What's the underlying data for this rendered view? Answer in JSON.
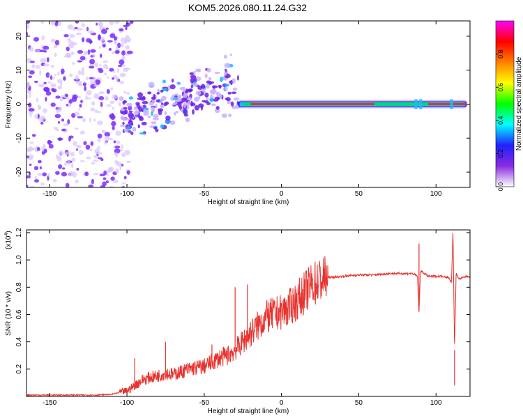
{
  "title": "KOM5.2026.080.11.24.G32",
  "colors": {
    "signal": "#e8322e",
    "axis": "#000000",
    "scatter": "#7a2cff",
    "scatter_light": "#d8c4ff",
    "band_core": "#ff2a2a",
    "band_edge": "#1fb8ff"
  },
  "chart_data": [
    {
      "type": "heatmap",
      "title": "KOM5.2026.080.11.24.G32",
      "xlabel": "Height of straight line (km)",
      "ylabel": "Frequency (Hz)",
      "xlim": [
        -165,
        122
      ],
      "ylim": [
        -24.5,
        24.5
      ],
      "xticks": [
        -150,
        -100,
        -50,
        0,
        50,
        100
      ],
      "xticklabels": [
        "-150",
        "-100",
        "-50",
        "0",
        "50",
        "100"
      ],
      "yticks": [
        -20,
        -10,
        0,
        10,
        20
      ],
      "yticklabels": [
        "-20",
        "-10",
        "0",
        "10",
        "20"
      ],
      "colorbar": {
        "label": "Normalized spectral amplitude",
        "range": [
          0,
          1
        ],
        "ticks": [
          0.0,
          0.2,
          0.4,
          0.6,
          0.8
        ],
        "ticklabels": [
          "0.0",
          "0.2",
          "0.4",
          "0.6",
          "0.8"
        ],
        "colormap": [
          "#ffffff",
          "#8a2be2",
          "#2020ff",
          "#00ffff",
          "#00ff00",
          "#ffff00",
          "#ff8000",
          "#ff0000",
          "#ff00ff"
        ]
      },
      "regions": [
        {
          "name": "noise",
          "x": [
            -165,
            -105
          ],
          "freq": [
            -24.5,
            24.5
          ],
          "amplitude": 0.12
        },
        {
          "name": "rising cluster",
          "x": [
            -105,
            -28
          ],
          "freq_start": [
            -8,
            0
          ],
          "freq_end": [
            0,
            13
          ],
          "amplitude": 0.25
        },
        {
          "name": "carrier line",
          "x": [
            -28,
            120
          ],
          "freq": 0,
          "amplitude": 0.95
        }
      ]
    },
    {
      "type": "line",
      "xlabel": "Height of straight line (km)",
      "ylabel": "SNR (10 * v/v)",
      "yscale_label": "(x10",
      "yscale_exponent": "4",
      "xlim": [
        -165,
        122
      ],
      "ylim": [
        0,
        1.22
      ],
      "xticks": [
        -150,
        -100,
        -50,
        0,
        50,
        100
      ],
      "xticklabels": [
        "-150",
        "-100",
        "-50",
        "0",
        "50",
        "100"
      ],
      "yticks": [
        0.2,
        0.4,
        0.6,
        0.8,
        1.0,
        1.2
      ],
      "yticklabels": [
        "0.2",
        "0.4",
        "0.6",
        "0.8",
        "1.0",
        "1.2"
      ],
      "series": [
        {
          "name": "SNR",
          "x": [
            -165,
            -140,
            -120,
            -110,
            -100,
            -95,
            -90,
            -85,
            -80,
            -75,
            -70,
            -60,
            -50,
            -45,
            -40,
            -35,
            -30,
            -25,
            -20,
            -15,
            -10,
            -5,
            0,
            5,
            10,
            15,
            20,
            25,
            30,
            40,
            50,
            60,
            70,
            80,
            85,
            88,
            89,
            90,
            95,
            100,
            105,
            108,
            110,
            111,
            112,
            113,
            115,
            120,
            122
          ],
          "y": [
            0.01,
            0.01,
            0.01,
            0.015,
            0.04,
            0.08,
            0.12,
            0.14,
            0.15,
            0.17,
            0.16,
            0.2,
            0.22,
            0.25,
            0.28,
            0.3,
            0.34,
            0.4,
            0.46,
            0.52,
            0.58,
            0.6,
            0.62,
            0.65,
            0.7,
            0.76,
            0.82,
            0.85,
            0.87,
            0.88,
            0.89,
            0.89,
            0.9,
            0.9,
            0.9,
            0.88,
            0.62,
            0.92,
            0.88,
            0.88,
            0.88,
            0.87,
            0.84,
            1.22,
            0.34,
            0.9,
            0.86,
            0.88,
            0.88
          ]
        }
      ],
      "spikes": [
        {
          "x": -95,
          "y": 0.28
        },
        {
          "x": -75,
          "y": 0.4
        },
        {
          "x": -45,
          "y": 0.38
        },
        {
          "x": -30,
          "y": 0.8
        },
        {
          "x": -22,
          "y": 0.82
        },
        {
          "x": 89,
          "y": 1.12
        },
        {
          "x": 111,
          "y": 1.22
        },
        {
          "x": 112,
          "y": 0.08
        }
      ]
    }
  ]
}
